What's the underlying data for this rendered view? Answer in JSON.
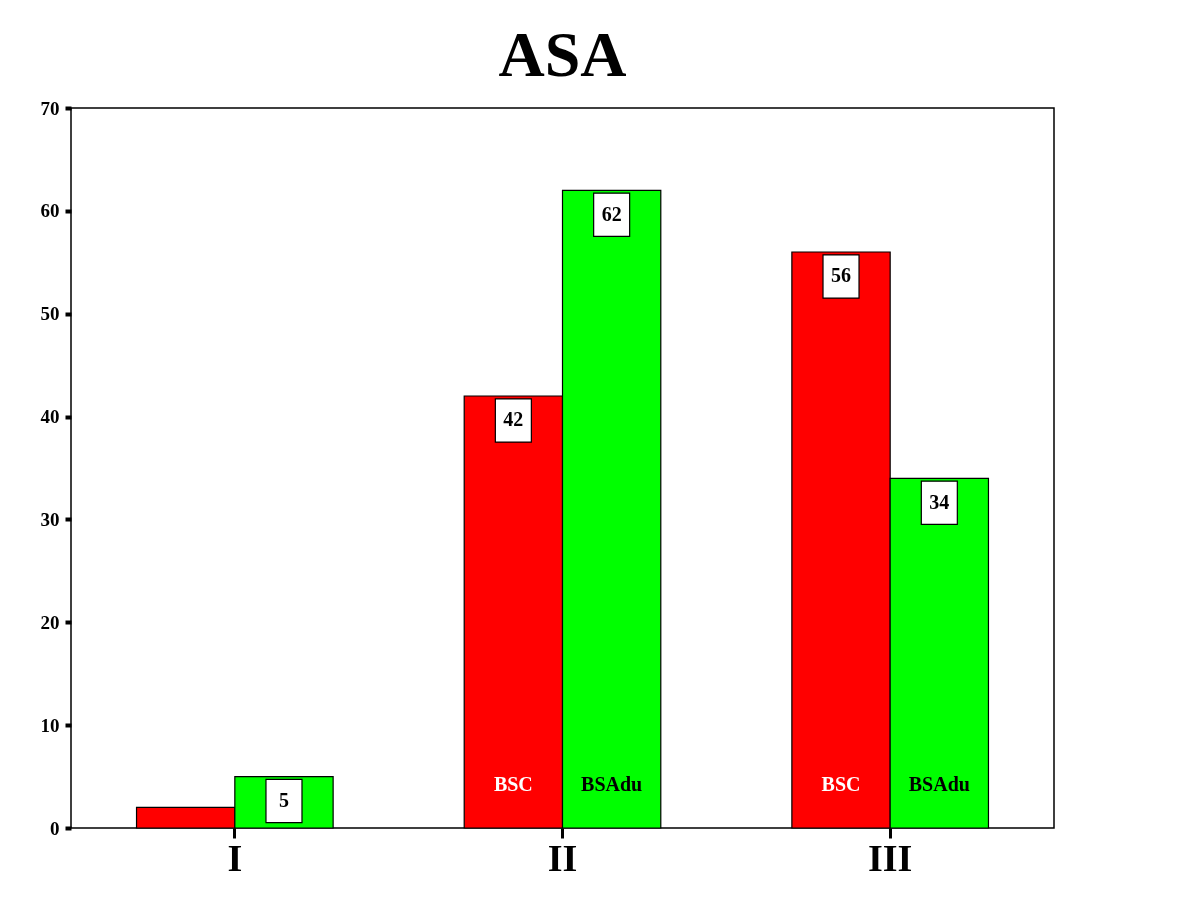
{
  "chart_data": {
    "type": "bar",
    "title": "ASA",
    "categories": [
      "I",
      "II",
      "III"
    ],
    "series": [
      {
        "name": "BSC",
        "color": "#ff0000",
        "values": [
          2,
          42,
          56
        ],
        "value_labels": [
          null,
          "42",
          "56"
        ]
      },
      {
        "name": "BSAdu",
        "color": "#00ff00",
        "values": [
          5,
          62,
          34
        ],
        "value_labels": [
          "5",
          "62",
          "34"
        ]
      }
    ],
    "ylim": [
      0,
      70
    ],
    "yticks": [
      0,
      10,
      20,
      30,
      40,
      50,
      60,
      70
    ],
    "grid": false,
    "legend": false
  }
}
